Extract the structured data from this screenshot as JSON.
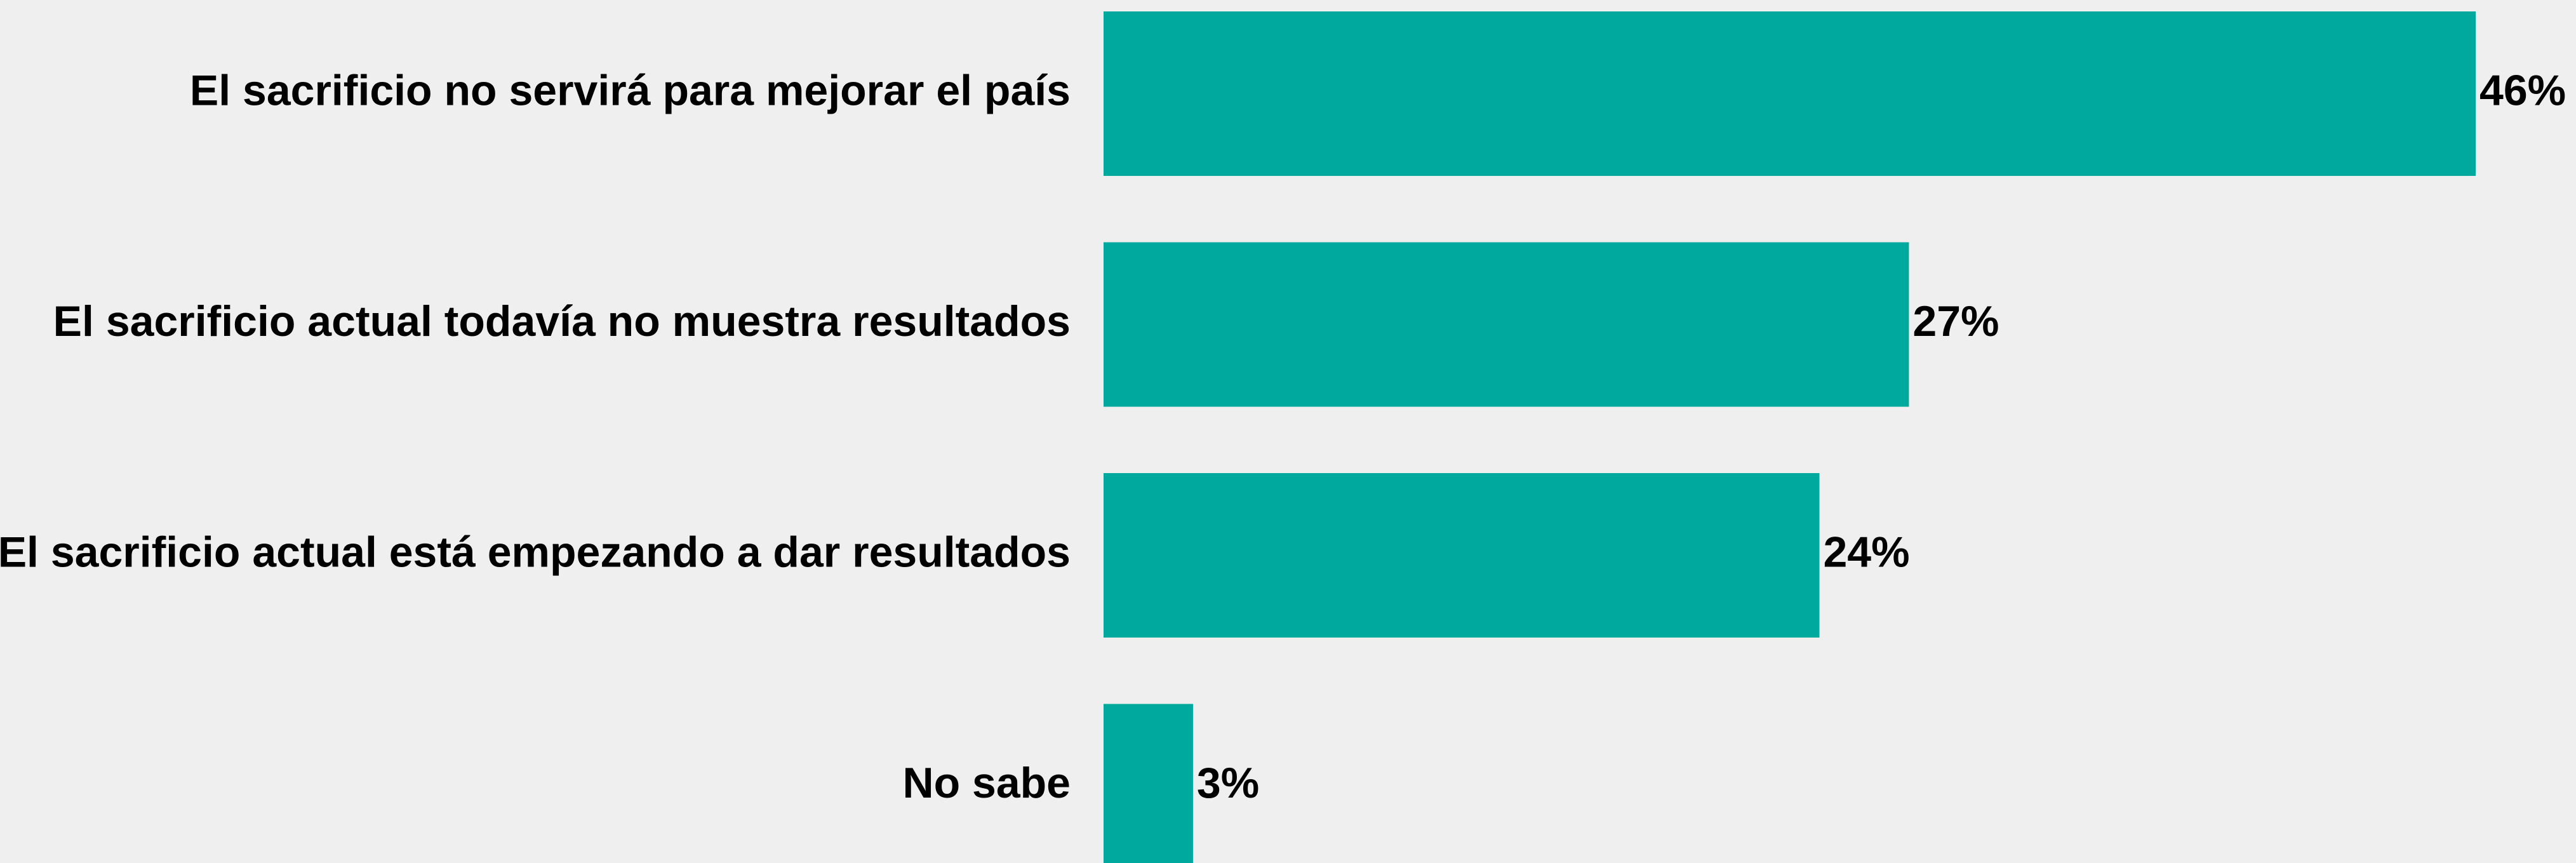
{
  "chart_data": {
    "type": "barh",
    "categories": [
      "El sacrificio no servirá para mejorar el país",
      "El sacrificio actual todavía no muestra resultados",
      "El sacrificio actual está empezando a dar resultados",
      "No sabe"
    ],
    "values": [
      46,
      27,
      24,
      3
    ],
    "value_labels": [
      "46%",
      "27%",
      "24%",
      "3%"
    ],
    "color": "#00a99d"
  }
}
